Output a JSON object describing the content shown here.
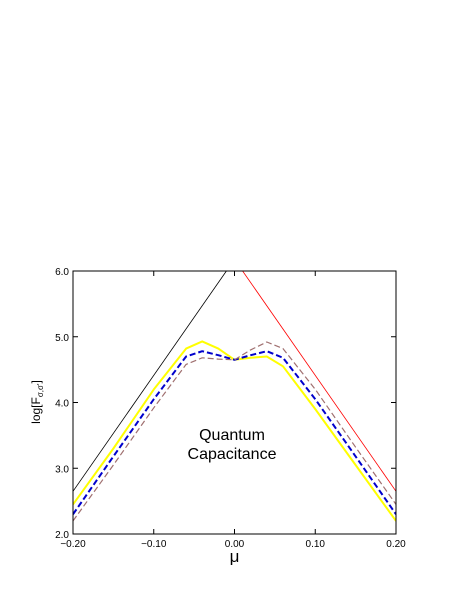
{
  "chart_data": {
    "type": "line",
    "title": "",
    "xlabel": "μ",
    "ylabel_main": "log[F",
    "ylabel_sub": "σ,σ'",
    "ylabel_close": "]",
    "xlim": [
      -0.2,
      0.2
    ],
    "ylim": [
      2.0,
      6.0
    ],
    "x_ticks": [
      -0.2,
      -0.1,
      0.0,
      0.1,
      0.2
    ],
    "x_tick_labels": [
      "−0.20",
      "−0.10",
      "0.00",
      "0.10",
      "0.20"
    ],
    "y_ticks": [
      2.0,
      3.0,
      4.0,
      5.0,
      6.0
    ],
    "y_tick_labels": [
      "2.0",
      "3.0",
      "4.0",
      "5.0",
      "6.0"
    ],
    "grid": false,
    "annotations": [
      {
        "line1": "Quantum",
        "line2": "Capacitance",
        "x": 0.0,
        "y": 3.0
      }
    ],
    "series": [
      {
        "color": "#000000",
        "style": "solid",
        "x": [
          -0.2,
          -0.01
        ],
        "y": [
          2.65,
          6.0
        ]
      },
      {
        "color": "#ff0000",
        "style": "solid",
        "x": [
          0.01,
          0.2
        ],
        "y": [
          6.0,
          2.65
        ]
      },
      {
        "color": "#ffff00",
        "style": "solid",
        "x": [
          -0.2,
          -0.15,
          -0.1,
          -0.06,
          -0.04,
          -0.02,
          0.0,
          0.02,
          0.04,
          0.06,
          0.1,
          0.15,
          0.2
        ],
        "y": [
          2.45,
          3.3,
          4.2,
          4.82,
          4.93,
          4.82,
          4.65,
          4.68,
          4.7,
          4.55,
          3.9,
          3.05,
          2.2
        ]
      },
      {
        "color": "#0000cc",
        "style": "dashed",
        "x": [
          -0.2,
          -0.15,
          -0.1,
          -0.06,
          -0.04,
          -0.02,
          0.0,
          0.02,
          0.04,
          0.06,
          0.1,
          0.15,
          0.2
        ],
        "y": [
          2.3,
          3.18,
          4.05,
          4.7,
          4.78,
          4.72,
          4.65,
          4.72,
          4.78,
          4.68,
          4.05,
          3.18,
          2.3
        ]
      },
      {
        "color": "#a07070",
        "style": "dashed",
        "x": [
          -0.2,
          -0.15,
          -0.1,
          -0.06,
          -0.04,
          -0.02,
          0.0,
          0.02,
          0.04,
          0.06,
          0.1,
          0.15,
          0.2
        ],
        "y": [
          2.2,
          3.05,
          3.92,
          4.58,
          4.68,
          4.66,
          4.65,
          4.8,
          4.92,
          4.82,
          4.2,
          3.32,
          2.45
        ]
      }
    ]
  }
}
